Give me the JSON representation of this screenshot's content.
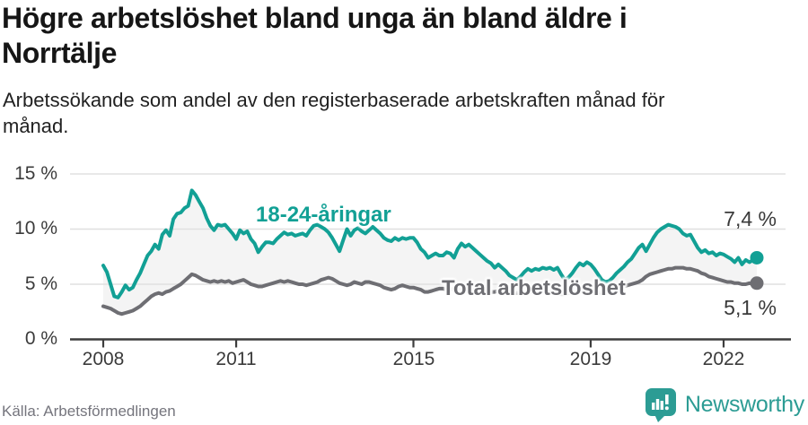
{
  "header": {
    "title": "Högre arbetslöshet bland unga än bland äldre i\nNorrtälje",
    "subtitle": "Arbetssökande som andel av den registerbaserade arbetskraften månad för\nmånad."
  },
  "footer": {
    "source": "Källa: Arbetsförmedlingen",
    "brand": "Newsworthy"
  },
  "colors": {
    "youth": "#12a095",
    "total": "#6e6e73",
    "band": "#f4f4f4",
    "grid": "#e0e0e0",
    "axis": "#3d3d3d",
    "tick_text": "#3b3b3b",
    "brand_teal": "#2c9c94"
  },
  "chart_data": {
    "type": "line",
    "title": "Högre arbetslöshet bland unga än bland äldre i Norrtälje",
    "subtitle": "Arbetssökande som andel av den registerbaserade arbetskraften månad för månad.",
    "unit": "%",
    "frequency": "monthly",
    "x_start": "2008-01",
    "x_end": "2022-10",
    "ylim": [
      0,
      15
    ],
    "yticks": [
      0,
      5,
      10,
      15
    ],
    "ytick_labels": [
      "0 %",
      "5 %",
      "10 %",
      "15 %"
    ],
    "xticks": [
      2008,
      2011,
      2015,
      2019,
      2022
    ],
    "xtick_labels": [
      "2008",
      "2011",
      "2015",
      "2019",
      "2022"
    ],
    "grid": true,
    "band_between_series": true,
    "series": [
      {
        "name": "18-24-åringar",
        "color": "#12a095",
        "end_label": "7,4 %",
        "end_value": 7.4,
        "values": [
          6.7,
          6.1,
          5.0,
          3.9,
          3.8,
          4.3,
          4.9,
          4.5,
          4.7,
          5.4,
          6.0,
          6.8,
          7.6,
          8.0,
          8.6,
          8.2,
          9.5,
          9.9,
          9.4,
          10.9,
          11.4,
          11.5,
          11.9,
          12.1,
          13.5,
          13.1,
          12.5,
          11.9,
          11.0,
          10.3,
          9.9,
          10.4,
          10.3,
          10.4,
          10.0,
          9.6,
          9.1,
          9.9,
          9.6,
          9.8,
          9.1,
          8.7,
          7.9,
          8.4,
          8.8,
          8.8,
          8.7,
          9.1,
          9.4,
          9.7,
          9.5,
          9.6,
          9.4,
          9.5,
          9.6,
          9.4,
          9.9,
          10.3,
          10.4,
          10.2,
          10.0,
          9.7,
          9.2,
          8.6,
          8.0,
          9.0,
          10.0,
          9.4,
          9.9,
          10.1,
          9.8,
          9.6,
          9.9,
          10.2,
          9.9,
          9.6,
          9.2,
          9.0,
          8.9,
          9.2,
          9.0,
          9.2,
          9.1,
          9.2,
          9.2,
          8.8,
          8.2,
          7.9,
          7.4,
          7.6,
          7.8,
          7.6,
          7.6,
          7.9,
          7.8,
          7.4,
          8.2,
          8.7,
          8.4,
          8.6,
          8.3,
          8.0,
          7.7,
          7.4,
          7.1,
          6.9,
          6.5,
          6.8,
          6.5,
          6.2,
          5.8,
          5.6,
          5.4,
          5.7,
          6.1,
          6.4,
          6.2,
          6.4,
          6.3,
          6.5,
          6.4,
          6.5,
          6.3,
          6.5,
          5.9,
          5.4,
          5.6,
          6.0,
          6.5,
          6.9,
          6.7,
          7.0,
          6.8,
          6.4,
          5.9,
          5.4,
          5.2,
          5.3,
          5.6,
          6.0,
          6.3,
          6.6,
          7.0,
          7.3,
          7.8,
          8.3,
          8.6,
          8.0,
          8.6,
          9.2,
          9.7,
          10.0,
          10.2,
          10.4,
          10.3,
          10.2,
          10.0,
          9.6,
          9.4,
          9.5,
          8.9,
          8.3,
          7.9,
          8.1,
          7.8,
          7.9,
          7.6,
          7.8,
          7.7,
          7.5,
          7.3,
          7.0,
          7.4,
          6.8,
          7.2,
          7.0,
          7.2,
          7.4
        ]
      },
      {
        "name": "Total arbetslöshet",
        "color": "#6e6e73",
        "end_label": "5,1 %",
        "end_value": 5.1,
        "values": [
          3.0,
          2.9,
          2.8,
          2.6,
          2.4,
          2.3,
          2.4,
          2.5,
          2.6,
          2.8,
          3.0,
          3.3,
          3.6,
          3.9,
          4.1,
          4.2,
          4.1,
          4.3,
          4.4,
          4.6,
          4.8,
          5.0,
          5.3,
          5.6,
          5.9,
          5.8,
          5.6,
          5.4,
          5.3,
          5.2,
          5.3,
          5.2,
          5.3,
          5.2,
          5.3,
          5.1,
          5.2,
          5.3,
          5.4,
          5.2,
          5.0,
          4.9,
          4.8,
          4.8,
          4.9,
          5.0,
          5.1,
          5.2,
          5.3,
          5.2,
          5.3,
          5.2,
          5.1,
          5.0,
          5.0,
          4.9,
          5.0,
          5.1,
          5.2,
          5.4,
          5.5,
          5.6,
          5.5,
          5.3,
          5.1,
          5.0,
          4.9,
          5.0,
          5.2,
          5.1,
          5.0,
          5.2,
          5.2,
          5.1,
          5.0,
          4.9,
          4.7,
          4.6,
          4.5,
          4.6,
          4.8,
          4.9,
          4.8,
          4.7,
          4.7,
          4.6,
          4.5,
          4.3,
          4.3,
          4.4,
          4.5,
          4.6,
          4.6,
          4.5,
          4.5,
          4.6,
          4.6,
          4.7,
          4.6,
          4.5,
          4.5,
          4.4,
          4.4,
          4.5,
          4.4,
          4.3,
          4.3,
          4.4,
          4.4,
          4.3,
          4.3,
          4.2,
          4.2,
          4.3,
          4.3,
          4.2,
          4.3,
          4.3,
          4.4,
          4.4,
          4.4,
          4.3,
          4.2,
          4.2,
          4.1,
          4.1,
          4.2,
          4.2,
          4.3,
          4.3,
          4.4,
          4.4,
          4.4,
          4.3,
          4.3,
          4.2,
          4.2,
          4.3,
          4.4,
          4.5,
          4.6,
          4.8,
          4.9,
          5.0,
          5.1,
          5.2,
          5.4,
          5.7,
          5.9,
          6.0,
          6.1,
          6.2,
          6.3,
          6.4,
          6.4,
          6.5,
          6.5,
          6.5,
          6.4,
          6.4,
          6.3,
          6.2,
          6.0,
          5.9,
          5.7,
          5.6,
          5.5,
          5.4,
          5.3,
          5.2,
          5.2,
          5.1,
          5.1,
          5.0,
          5.0,
          5.1,
          5.0,
          5.1
        ]
      }
    ]
  }
}
